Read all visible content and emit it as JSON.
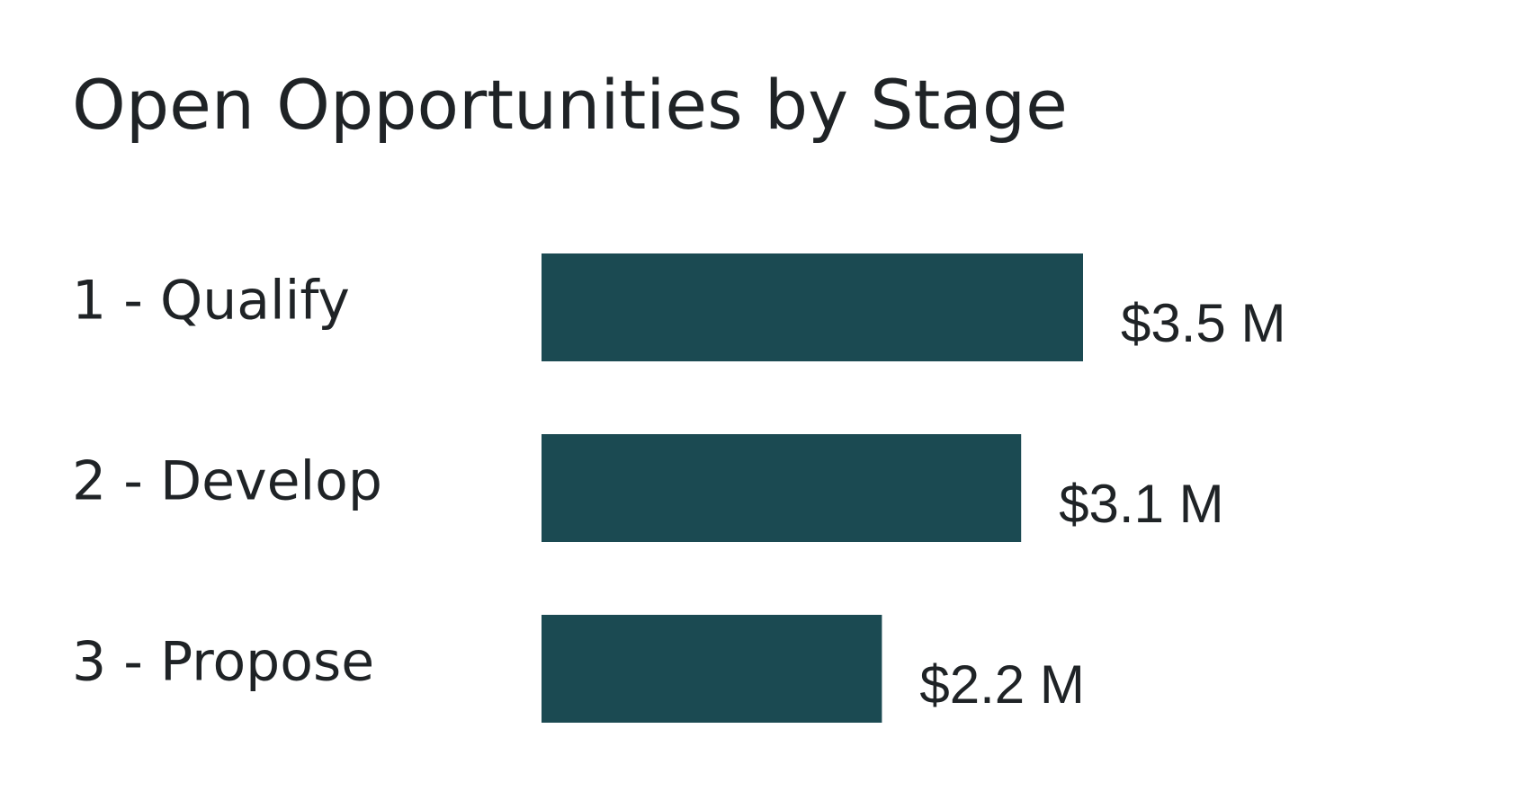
{
  "chart_data": {
    "type": "bar",
    "orientation": "horizontal",
    "title": "Open Opportunities by Stage",
    "categories": [
      "1 - Qualify",
      "2 - Develop",
      "3 - Propose"
    ],
    "values": [
      3.5,
      3.1,
      2.2
    ],
    "value_labels": [
      "$3.5 M",
      "$3.1 M",
      "$2.2 M"
    ],
    "color": "#1b4a52"
  }
}
